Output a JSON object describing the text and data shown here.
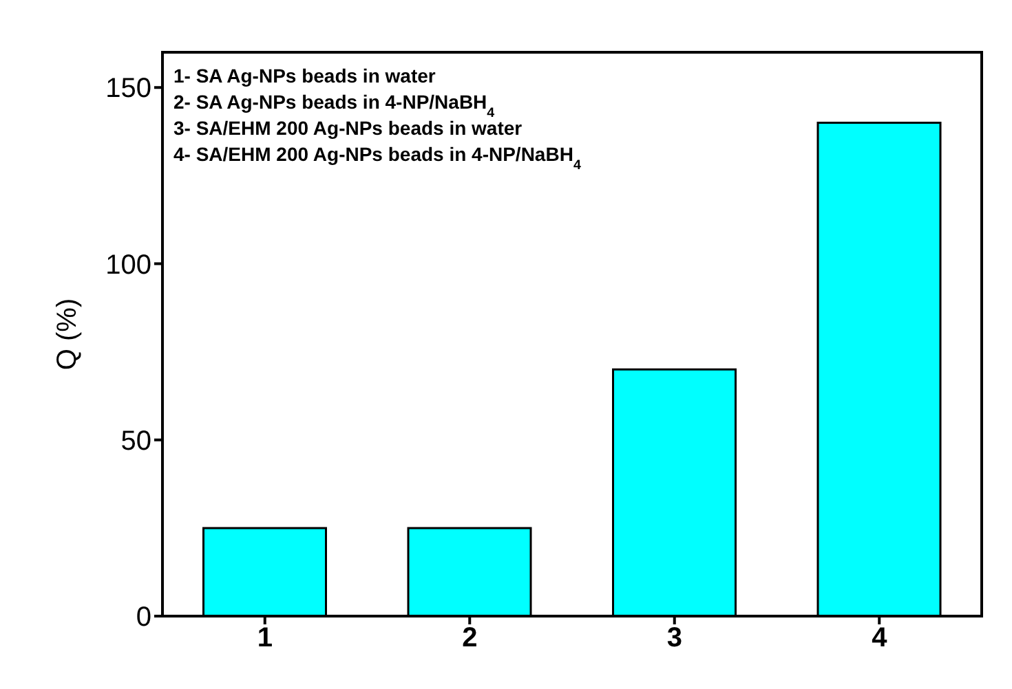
{
  "chart_data": {
    "type": "bar",
    "ylabel": "Q (%)",
    "categories": [
      "1",
      "2",
      "3",
      "4"
    ],
    "values": [
      25,
      25,
      70,
      140
    ],
    "color": "#00ffff",
    "ylim": [
      0,
      160
    ],
    "yticks": [
      0,
      50,
      100,
      150
    ],
    "grid": false,
    "legend": false,
    "annotations": [
      "1- SA Ag-NPs beads in water",
      "2- SA Ag-NPs beads in 4-NP/NaBH$_{4}$",
      "3- SA/EHM 200 Ag-NPs beads in water",
      "4- SA/EHM 200 Ag-NPs beads in 4-NP/NaBH$_{4}$"
    ]
  }
}
